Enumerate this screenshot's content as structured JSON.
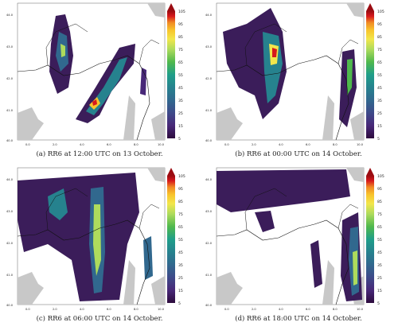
{
  "figure": {
    "y_ticks": [
      "44.0",
      "43.0",
      "42.0",
      "41.0",
      "40.0"
    ],
    "x_ticks": [
      "0.0",
      "2.0",
      "4.0",
      "6.0",
      "8.0",
      "10.0"
    ],
    "colorbar": {
      "values": [
        "105",
        "95",
        "85",
        "75",
        "65",
        "55",
        "45",
        "35",
        "25",
        "15",
        "5"
      ],
      "colors": [
        "#9b0c12",
        "#d7191c",
        "#f08a24",
        "#f8c52c",
        "#f2e64b",
        "#aedb5c",
        "#4fb84d",
        "#1f9e89",
        "#26828e",
        "#31688e",
        "#3e4989",
        "#482878",
        "#2d0b3d"
      ]
    },
    "panels": [
      {
        "caption": "(a) RR6 at 12:00 UTC on 13 October."
      },
      {
        "caption": "(b) RR6 at 00:00 UTC on 14 October."
      },
      {
        "caption": "(c) RR6 at 06:00 UTC on 14 October."
      },
      {
        "caption": "(d) RR6 at 18:00 UTC on 14 October."
      }
    ]
  }
}
